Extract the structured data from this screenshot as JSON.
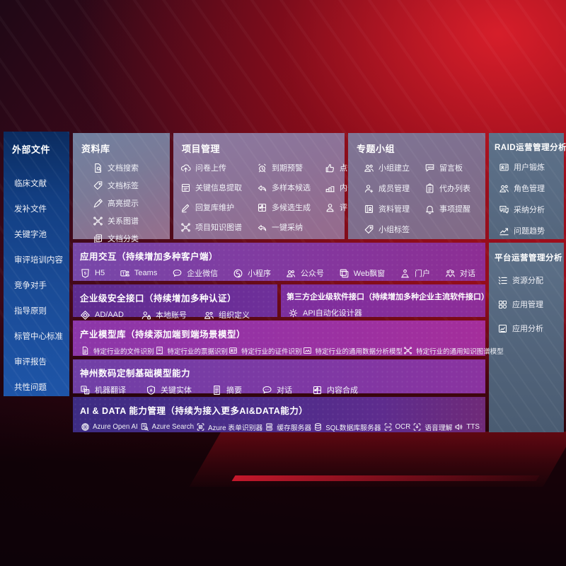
{
  "colors": {
    "background_red": "#a10e1d",
    "sidebar_blue": "#1a4b96",
    "row_purple": "#83389f",
    "panel_slate": "#5d7189",
    "ai_row_indigo": "#4c2d8a"
  },
  "sidebar": {
    "title": "外部文件",
    "items": [
      "临床文献",
      "发补文件",
      "关键字池",
      "审评培训内容",
      "竞争对手",
      "指导原则",
      "标管中心标准",
      "审评报告",
      "共性问题"
    ]
  },
  "library": {
    "title": "资料库",
    "items": [
      {
        "label": "文档搜索",
        "icon": "doc-search-icon"
      },
      {
        "label": "文档标签",
        "icon": "tag-icon"
      },
      {
        "label": "高亮提示",
        "icon": "highlighter-icon"
      },
      {
        "label": "关系图谱",
        "icon": "graph-icon"
      },
      {
        "label": "文档分类",
        "icon": "doc-stack-icon"
      }
    ]
  },
  "project": {
    "title": "项目管理",
    "items": [
      {
        "label": "问卷上传",
        "icon": "cloud-upload-icon"
      },
      {
        "label": "到期预警",
        "icon": "alarm-icon"
      },
      {
        "label": "点赞感谢",
        "icon": "thumbs-up-icon"
      },
      {
        "label": "关键信息提取",
        "icon": "doc-extract-icon"
      },
      {
        "label": "多样本候选",
        "icon": "reply-arrow-icon"
      },
      {
        "label": "内部专家排名",
        "icon": "ranking-icon"
      },
      {
        "label": "回复库维护",
        "icon": "pen-icon"
      },
      {
        "label": "多候选生成",
        "icon": "puzzle-icon"
      },
      {
        "label": "评审员画像",
        "icon": "person-icon"
      },
      {
        "label": "项目知识图谱",
        "icon": "graph-icon"
      },
      {
        "label": "一键采纳",
        "icon": "adopt-arrow-icon"
      }
    ]
  },
  "group": {
    "title": "专题小组",
    "items": [
      {
        "label": "小组建立",
        "icon": "people-icon"
      },
      {
        "label": "留言板",
        "icon": "bbs-icon"
      },
      {
        "label": "成员管理",
        "icon": "member-icon"
      },
      {
        "label": "代办列表",
        "icon": "clipboard-icon"
      },
      {
        "label": "资料管理",
        "icon": "album-icon"
      },
      {
        "label": "事项提醒",
        "icon": "bell-icon"
      },
      {
        "label": "小组标签",
        "icon": "tag-icon"
      }
    ]
  },
  "raid": {
    "title": "RAID运营管理分析",
    "items": [
      {
        "label": "用户锻炼",
        "icon": "id-card-icon"
      },
      {
        "label": "角色管理",
        "icon": "people-icon"
      },
      {
        "label": "采纳分析",
        "icon": "chat-qa-icon"
      },
      {
        "label": "问题趋势",
        "icon": "trend-icon"
      }
    ]
  },
  "platform": {
    "title": "平台运营管理分析",
    "items": [
      {
        "label": "资源分配",
        "icon": "list-icon"
      },
      {
        "label": "应用管理",
        "icon": "grid-icon"
      },
      {
        "label": "应用分析",
        "icon": "app-chart-icon"
      }
    ]
  },
  "rows": {
    "app": {
      "title": "应用交互（持续增加多种客户端）",
      "items": [
        {
          "label": "H5",
          "icon": "h5-icon"
        },
        {
          "label": "Teams",
          "icon": "teams-icon"
        },
        {
          "label": "企业微信",
          "icon": "wecom-icon"
        },
        {
          "label": "小程序",
          "icon": "miniprogram-icon"
        },
        {
          "label": "公众号",
          "icon": "official-account-icon"
        },
        {
          "label": "Web飘窗",
          "icon": "web-window-icon"
        },
        {
          "label": "门户",
          "icon": "portal-icon"
        },
        {
          "label": "对话",
          "icon": "dialog-icon"
        }
      ]
    },
    "security": {
      "title": "企业级安全接口（持续增加多种认证）",
      "items": [
        {
          "label": "AD/AAD",
          "icon": "ad-aad-icon"
        },
        {
          "label": "本地账号",
          "icon": "local-account-icon"
        },
        {
          "label": "组织定义",
          "icon": "org-icon"
        }
      ]
    },
    "third": {
      "title": "第三方企业级软件接口（持续增加多种企业主流软件接口）",
      "items": [
        {
          "label": "API自动化设计器",
          "icon": "api-gear-icon"
        }
      ]
    },
    "industry": {
      "title": "产业模型库（持续添加端到端场景模型）",
      "items": [
        {
          "label": "特定行业的文件识别",
          "icon": "doc-recog-icon"
        },
        {
          "label": "特定行业的票据识别",
          "icon": "invoice-icon"
        },
        {
          "label": "特定行业的证件识别",
          "icon": "id-card-icon"
        },
        {
          "label": "特定行业的通用数据分析模型",
          "icon": "image-chart-icon"
        },
        {
          "label": "特定行业的通用知识图谱模型",
          "icon": "graph-icon"
        }
      ]
    },
    "foundation": {
      "title": "神州数码定制基础模型能力",
      "items": [
        {
          "label": "机器翻译",
          "icon": "translate-icon"
        },
        {
          "label": "关键实体",
          "icon": "entity-icon"
        },
        {
          "label": "摘要",
          "icon": "summary-icon"
        },
        {
          "label": "对话",
          "icon": "chat-icon"
        },
        {
          "label": "内容合成",
          "icon": "puzzle-icon"
        }
      ]
    },
    "aidata": {
      "title": "AI & DATA 能力管理（持续为接入更多AI&DATA能力）",
      "items": [
        {
          "label": "Azure Open AI",
          "icon": "openai-icon"
        },
        {
          "label": "Azure Search",
          "icon": "azure-search-icon"
        },
        {
          "label": "Azure 表单识别器",
          "icon": "form-recognizer-icon"
        },
        {
          "label": "缓存服务器",
          "icon": "cache-server-icon"
        },
        {
          "label": "SQL数据库服务器",
          "icon": "sql-db-icon"
        },
        {
          "label": "OCR",
          "icon": "ocr-icon"
        },
        {
          "label": "语音理解",
          "icon": "speech-icon"
        },
        {
          "label": "TTS",
          "icon": "tts-icon"
        }
      ]
    }
  }
}
